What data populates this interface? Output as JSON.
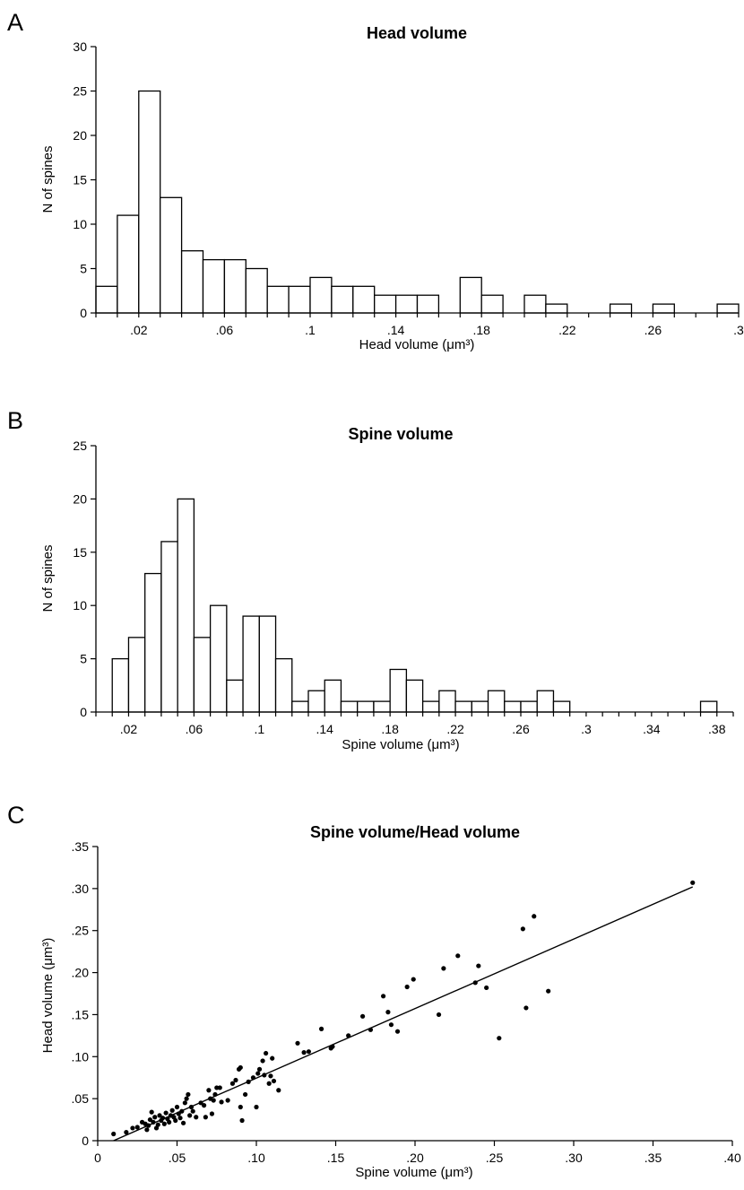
{
  "chart_data": [
    {
      "panel": "A",
      "type": "bar",
      "title": "Head volume",
      "xlabel": "Head volume (μm³)",
      "ylabel": "N of spines",
      "xlim": [
        0,
        0.3
      ],
      "ylim": [
        0,
        30
      ],
      "bin_width": 0.01,
      "x_ticks": [
        {
          "value": 0.02,
          "label": ".02"
        },
        {
          "value": 0.06,
          "label": ".06"
        },
        {
          "value": 0.1,
          "label": ".1"
        },
        {
          "value": 0.14,
          "label": ".14"
        },
        {
          "value": 0.18,
          "label": ".18"
        },
        {
          "value": 0.22,
          "label": ".22"
        },
        {
          "value": 0.26,
          "label": ".26"
        },
        {
          "value": 0.3,
          "label": ".3"
        }
      ],
      "y_ticks": [
        0,
        5,
        10,
        15,
        20,
        25,
        30
      ],
      "values": [
        3,
        11,
        25,
        13,
        7,
        6,
        6,
        5,
        3,
        3,
        4,
        3,
        3,
        2,
        2,
        2,
        0,
        4,
        2,
        0,
        2,
        1,
        0,
        0,
        1,
        0,
        1,
        0,
        0,
        1
      ]
    },
    {
      "panel": "B",
      "type": "bar",
      "title": "Spine volume",
      "xlabel": "Spine volume (μm³)",
      "ylabel": "N of spines",
      "xlim": [
        0,
        0.39
      ],
      "ylim": [
        0,
        25
      ],
      "bin_width": 0.01,
      "first_bin_start": 0.01,
      "x_ticks": [
        {
          "value": 0.02,
          "label": ".02"
        },
        {
          "value": 0.06,
          "label": ".06"
        },
        {
          "value": 0.1,
          "label": ".1"
        },
        {
          "value": 0.14,
          "label": ".14"
        },
        {
          "value": 0.18,
          "label": ".18"
        },
        {
          "value": 0.22,
          "label": ".22"
        },
        {
          "value": 0.26,
          "label": ".26"
        },
        {
          "value": 0.3,
          "label": ".3"
        },
        {
          "value": 0.34,
          "label": ".34"
        },
        {
          "value": 0.38,
          "label": ".38"
        }
      ],
      "y_ticks": [
        0,
        5,
        10,
        15,
        20,
        25
      ],
      "values": [
        5,
        7,
        13,
        16,
        20,
        7,
        10,
        3,
        9,
        9,
        5,
        1,
        2,
        3,
        1,
        1,
        1,
        4,
        3,
        1,
        2,
        1,
        1,
        2,
        1,
        1,
        2,
        1,
        0,
        0,
        0,
        0,
        0,
        0,
        0,
        0,
        1
      ]
    },
    {
      "panel": "C",
      "type": "scatter",
      "title": "Spine volume/Head volume",
      "xlabel": "Spine volume (μm³)",
      "ylabel": "Head volume (μm³)",
      "xlim": [
        0,
        0.4
      ],
      "ylim": [
        0,
        0.35
      ],
      "x_ticks": [
        {
          "value": 0,
          "label": "0"
        },
        {
          "value": 0.05,
          "label": ".05"
        },
        {
          "value": 0.1,
          "label": ".10"
        },
        {
          "value": 0.15,
          "label": ".15"
        },
        {
          "value": 0.2,
          "label": ".20"
        },
        {
          "value": 0.25,
          "label": ".25"
        },
        {
          "value": 0.3,
          "label": ".30"
        },
        {
          "value": 0.35,
          "label": ".35"
        },
        {
          "value": 0.4,
          "label": ".40"
        }
      ],
      "y_ticks": [
        {
          "value": 0,
          "label": "0"
        },
        {
          "value": 0.05,
          "label": ".05"
        },
        {
          "value": 0.1,
          "label": ".10"
        },
        {
          "value": 0.15,
          "label": ".15"
        },
        {
          "value": 0.2,
          "label": ".20"
        },
        {
          "value": 0.25,
          "label": ".25"
        },
        {
          "value": 0.3,
          "label": ".30"
        },
        {
          "value": 0.35,
          "label": ".35"
        }
      ],
      "fit_line": [
        [
          0.01,
          0.0
        ],
        [
          0.375,
          0.302
        ]
      ],
      "points": [
        [
          0.01,
          0.008
        ],
        [
          0.018,
          0.01
        ],
        [
          0.022,
          0.015
        ],
        [
          0.025,
          0.016
        ],
        [
          0.028,
          0.022
        ],
        [
          0.03,
          0.02
        ],
        [
          0.031,
          0.013
        ],
        [
          0.032,
          0.018
        ],
        [
          0.033,
          0.025
        ],
        [
          0.034,
          0.034
        ],
        [
          0.035,
          0.022
        ],
        [
          0.036,
          0.028
        ],
        [
          0.037,
          0.015
        ],
        [
          0.038,
          0.019
        ],
        [
          0.039,
          0.03
        ],
        [
          0.04,
          0.024
        ],
        [
          0.041,
          0.027
        ],
        [
          0.042,
          0.02
        ],
        [
          0.043,
          0.033
        ],
        [
          0.044,
          0.026
        ],
        [
          0.045,
          0.022
        ],
        [
          0.046,
          0.03
        ],
        [
          0.047,
          0.036
        ],
        [
          0.048,
          0.028
        ],
        [
          0.049,
          0.024
        ],
        [
          0.05,
          0.04
        ],
        [
          0.051,
          0.032
        ],
        [
          0.052,
          0.027
        ],
        [
          0.053,
          0.035
        ],
        [
          0.054,
          0.021
        ],
        [
          0.055,
          0.045
        ],
        [
          0.056,
          0.05
        ],
        [
          0.057,
          0.055
        ],
        [
          0.058,
          0.03
        ],
        [
          0.059,
          0.04
        ],
        [
          0.06,
          0.035
        ],
        [
          0.062,
          0.028
        ],
        [
          0.065,
          0.045
        ],
        [
          0.067,
          0.042
        ],
        [
          0.068,
          0.028
        ],
        [
          0.07,
          0.06
        ],
        [
          0.071,
          0.05
        ],
        [
          0.072,
          0.032
        ],
        [
          0.073,
          0.048
        ],
        [
          0.074,
          0.055
        ],
        [
          0.075,
          0.063
        ],
        [
          0.077,
          0.063
        ],
        [
          0.078,
          0.046
        ],
        [
          0.082,
          0.048
        ],
        [
          0.085,
          0.068
        ],
        [
          0.087,
          0.072
        ],
        [
          0.089,
          0.085
        ],
        [
          0.09,
          0.087
        ],
        [
          0.09,
          0.04
        ],
        [
          0.091,
          0.024
        ],
        [
          0.093,
          0.055
        ],
        [
          0.095,
          0.07
        ],
        [
          0.098,
          0.075
        ],
        [
          0.1,
          0.04
        ],
        [
          0.101,
          0.08
        ],
        [
          0.102,
          0.085
        ],
        [
          0.104,
          0.095
        ],
        [
          0.105,
          0.078
        ],
        [
          0.106,
          0.104
        ],
        [
          0.108,
          0.068
        ],
        [
          0.109,
          0.077
        ],
        [
          0.11,
          0.098
        ],
        [
          0.111,
          0.071
        ],
        [
          0.114,
          0.06
        ],
        [
          0.126,
          0.116
        ],
        [
          0.13,
          0.105
        ],
        [
          0.133,
          0.106
        ],
        [
          0.141,
          0.133
        ],
        [
          0.147,
          0.11
        ],
        [
          0.148,
          0.112
        ],
        [
          0.158,
          0.125
        ],
        [
          0.167,
          0.148
        ],
        [
          0.172,
          0.132
        ],
        [
          0.18,
          0.172
        ],
        [
          0.183,
          0.153
        ],
        [
          0.185,
          0.138
        ],
        [
          0.189,
          0.13
        ],
        [
          0.195,
          0.183
        ],
        [
          0.199,
          0.192
        ],
        [
          0.215,
          0.15
        ],
        [
          0.218,
          0.205
        ],
        [
          0.227,
          0.22
        ],
        [
          0.238,
          0.188
        ],
        [
          0.24,
          0.208
        ],
        [
          0.245,
          0.182
        ],
        [
          0.253,
          0.122
        ],
        [
          0.268,
          0.252
        ],
        [
          0.27,
          0.158
        ],
        [
          0.275,
          0.267
        ],
        [
          0.284,
          0.178
        ],
        [
          0.375,
          0.307
        ]
      ]
    }
  ]
}
